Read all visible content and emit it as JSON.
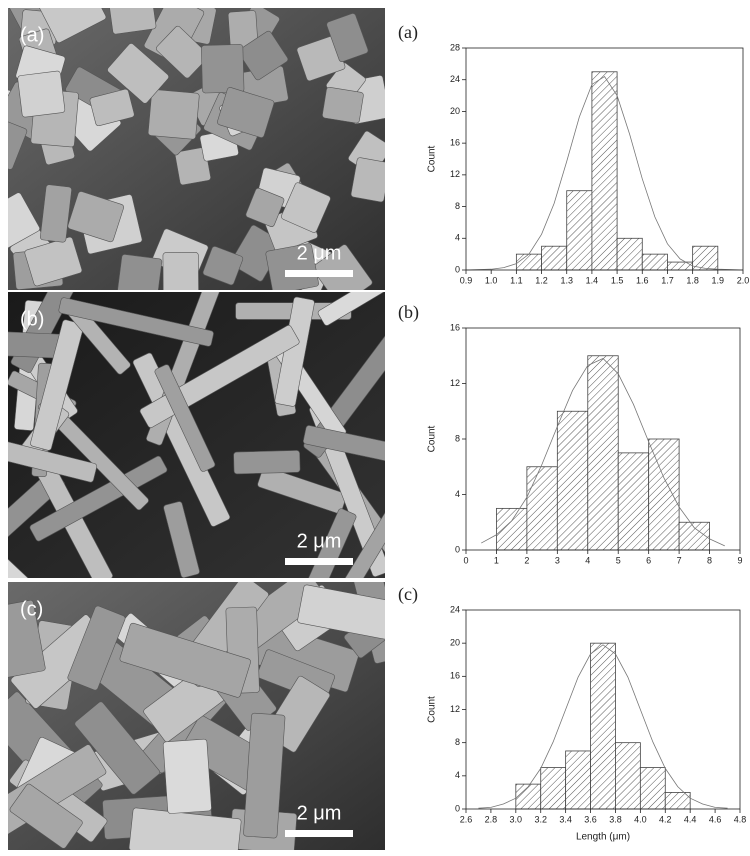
{
  "images": [
    {
      "label": "(a)",
      "scale_bar": "2 μm"
    },
    {
      "label": "(b)",
      "scale_bar": "2 μm"
    },
    {
      "label": "(c)",
      "scale_bar": "2 μm"
    }
  ],
  "chart_data": [
    {
      "type": "histogram",
      "panel_label": "(a)",
      "y_label": "Count",
      "color": "#444444",
      "bins": [
        1.1,
        1.2,
        1.3,
        1.4,
        1.5,
        1.6,
        1.7,
        1.8,
        1.9
      ],
      "values": [
        2,
        3,
        10,
        25,
        4,
        2,
        1,
        3
      ],
      "fit": {
        "x": [
          0.9,
          1.0,
          1.05,
          1.1,
          1.15,
          1.2,
          1.25,
          1.3,
          1.35,
          1.4,
          1.45,
          1.5,
          1.55,
          1.6,
          1.65,
          1.7,
          1.75,
          1.8,
          1.85,
          1.9,
          2.0
        ],
        "values": [
          0.0,
          0.1,
          0.3,
          0.8,
          2.0,
          4.5,
          8.4,
          13.7,
          19.3,
          23.4,
          24.4,
          22.0,
          17.1,
          11.5,
          6.7,
          3.3,
          1.4,
          0.5,
          0.2,
          0.1,
          0.0
        ]
      },
      "xlim": [
        0.9,
        2.0
      ],
      "xticks": [
        0.9,
        {
          "value": 1,
          "label": "1.0"
        },
        1.1,
        1.2,
        1.3,
        1.4,
        1.5,
        1.6,
        1.7,
        1.8,
        1.9,
        {
          "value": 2,
          "label": "2.0"
        }
      ],
      "ylim": [
        0,
        28
      ],
      "yticks": [
        0,
        4,
        8,
        12,
        16,
        20,
        24,
        28
      ]
    },
    {
      "type": "histogram",
      "panel_label": "(b)",
      "y_label": "Count",
      "color": "#444444",
      "bins": [
        1,
        2,
        3,
        4,
        5,
        6,
        7,
        8
      ],
      "values": [
        3,
        6,
        10,
        14,
        7,
        8,
        2
      ],
      "fit": {
        "x": [
          0.5,
          1.0,
          1.5,
          2.0,
          2.5,
          3.0,
          3.5,
          4.0,
          4.5,
          5.0,
          5.5,
          6.0,
          6.5,
          7.0,
          7.5,
          8.0,
          8.5
        ],
        "values": [
          0.5,
          1.1,
          2.1,
          3.8,
          6.2,
          8.9,
          11.5,
          13.3,
          13.8,
          12.7,
          10.5,
          7.8,
          5.2,
          3.1,
          1.6,
          0.8,
          0.3
        ]
      },
      "xlim": [
        0,
        9
      ],
      "xticks": [
        0,
        1,
        2,
        3,
        4,
        5,
        6,
        7,
        8,
        9
      ],
      "ylim": [
        0,
        16
      ],
      "yticks": [
        0,
        4,
        8,
        12,
        16
      ]
    },
    {
      "type": "histogram",
      "panel_label": "(c)",
      "y_label": "Count",
      "x_label": "Length (μm)",
      "color": "#444444",
      "bins": [
        3.0,
        3.2,
        3.4,
        3.6,
        3.8,
        4.0,
        4.2,
        4.4
      ],
      "values": [
        3,
        5,
        7,
        20,
        8,
        5,
        2
      ],
      "fit": {
        "x": [
          2.7,
          2.8,
          2.9,
          3.0,
          3.1,
          3.2,
          3.3,
          3.4,
          3.5,
          3.6,
          3.7,
          3.8,
          3.9,
          4.0,
          4.1,
          4.2,
          4.3,
          4.4,
          4.5,
          4.6,
          4.7
        ],
        "values": [
          0.1,
          0.2,
          0.6,
          1.3,
          2.7,
          4.9,
          8.1,
          12.0,
          15.9,
          18.7,
          19.8,
          18.7,
          15.9,
          12.0,
          8.1,
          4.9,
          2.7,
          1.3,
          0.6,
          0.2,
          0.1
        ]
      },
      "xlim": [
        2.6,
        4.8
      ],
      "xticks": [
        2.6,
        2.8,
        {
          "value": 3,
          "label": "3.0"
        },
        3.2,
        3.4,
        3.6,
        3.8,
        {
          "value": 4,
          "label": "4.0"
        },
        4.2,
        4.4,
        4.6,
        4.8
      ],
      "ylim": [
        0,
        24
      ],
      "yticks": [
        0,
        4,
        8,
        12,
        16,
        20,
        24
      ]
    }
  ]
}
